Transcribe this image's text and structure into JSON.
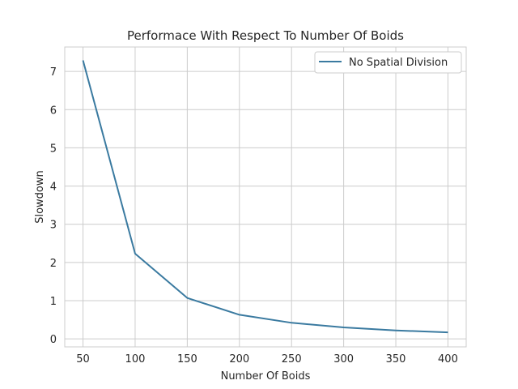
{
  "chart_data": {
    "type": "line",
    "title": "Performace With Respect To Number Of Boids",
    "xlabel": "Number Of Boids",
    "ylabel": "Slowdown",
    "xlim": [
      32.5,
      417.5
    ],
    "ylim": [
      -0.21,
      7.64
    ],
    "xticks": [
      50,
      100,
      150,
      200,
      250,
      300,
      350,
      400
    ],
    "yticks": [
      0,
      1,
      2,
      3,
      4,
      5,
      6,
      7
    ],
    "grid": true,
    "legend_position": "top-right",
    "series": [
      {
        "name": "No Spatial Division",
        "color": "#3a7aa0",
        "x": [
          50,
          100,
          150,
          200,
          250,
          300,
          350,
          400
        ],
        "y": [
          7.29,
          2.23,
          1.07,
          0.63,
          0.42,
          0.3,
          0.22,
          0.17
        ]
      }
    ]
  }
}
